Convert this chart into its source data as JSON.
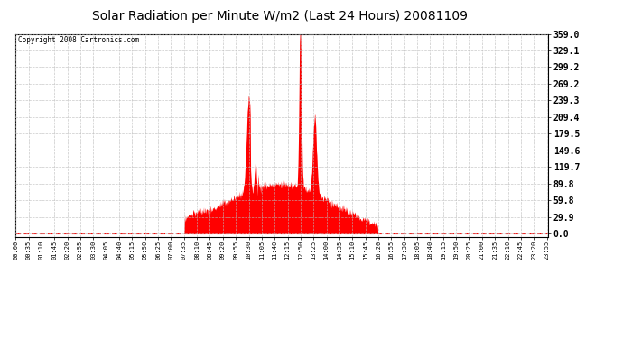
{
  "title": "Solar Radiation per Minute W/m2 (Last 24 Hours) 20081109",
  "copyright_text": "Copyright 2008 Cartronics.com",
  "fill_color": "#FF0000",
  "background_color": "#FFFFFF",
  "grid_color": "#BBBBBB",
  "ytick_labels": [
    0.0,
    29.9,
    59.8,
    89.8,
    119.7,
    149.6,
    179.5,
    209.4,
    239.3,
    269.2,
    299.2,
    329.1,
    359.0
  ],
  "ymax": 359.0,
  "ymin": -5.0,
  "total_minutes": 1440,
  "xtick_positions": [
    0,
    35,
    70,
    105,
    140,
    175,
    210,
    245,
    280,
    315,
    350,
    385,
    420,
    455,
    490,
    525,
    560,
    595,
    630,
    665,
    700,
    735,
    770,
    805,
    840,
    875,
    910,
    945,
    980,
    1015,
    1050,
    1085,
    1120,
    1155,
    1190,
    1225,
    1260,
    1295,
    1330,
    1365,
    1400,
    1435
  ],
  "xtick_labels": [
    "00:00",
    "00:35",
    "01:10",
    "01:45",
    "02:20",
    "02:55",
    "03:30",
    "04:05",
    "04:40",
    "05:15",
    "05:50",
    "06:25",
    "07:00",
    "07:35",
    "08:10",
    "08:45",
    "09:20",
    "09:55",
    "10:30",
    "11:05",
    "11:40",
    "12:15",
    "12:50",
    "13:25",
    "14:00",
    "14:35",
    "15:10",
    "15:45",
    "16:20",
    "16:55",
    "17:30",
    "18:05",
    "18:40",
    "19:15",
    "19:50",
    "20:25",
    "21:00",
    "21:35",
    "22:10",
    "22:45",
    "23:20",
    "23:55"
  ],
  "fig_width": 6.9,
  "fig_height": 3.75,
  "dpi": 100
}
